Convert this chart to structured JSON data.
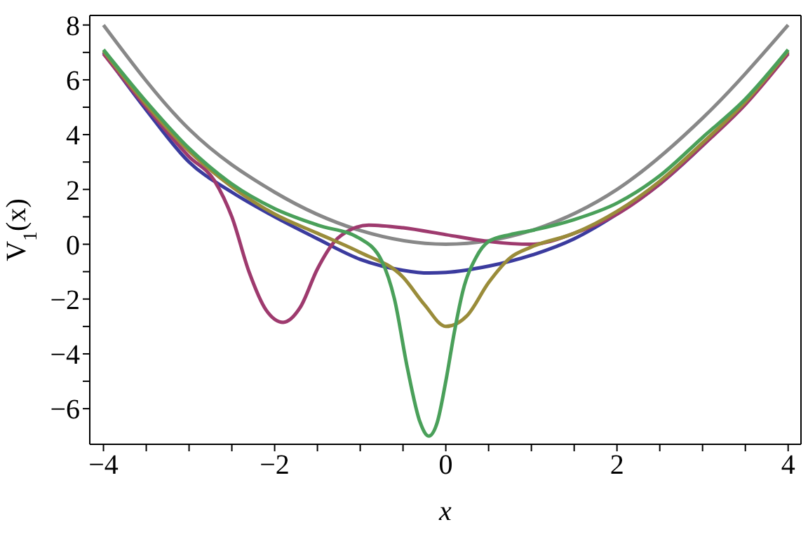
{
  "chart_data": {
    "type": "line",
    "xlabel": "x",
    "ylabel": "V$_{1}$(x)",
    "xlim": [
      -4.16,
      4.15
    ],
    "ylim": [
      -7.3,
      8.35
    ],
    "xticks": [
      -4,
      {
        "value": -3.5,
        "label": null
      },
      {
        "value": -3,
        "label": null
      },
      {
        "value": -2.5,
        "label": null
      },
      -2,
      {
        "value": -1.5,
        "label": null
      },
      {
        "value": -1,
        "label": null
      },
      {
        "value": -0.5,
        "label": null
      },
      0,
      {
        "value": 0.5,
        "label": null
      },
      {
        "value": 1,
        "label": null
      },
      {
        "value": 1.5,
        "label": null
      },
      2,
      {
        "value": 2.5,
        "label": null
      },
      {
        "value": 3,
        "label": null
      },
      {
        "value": 3.5,
        "label": null
      },
      4
    ],
    "yticks": [
      -6,
      {
        "value": -5,
        "label": null
      },
      -4,
      {
        "value": -3,
        "label": null
      },
      -2,
      {
        "value": -1,
        "label": null
      },
      0,
      {
        "value": 1,
        "label": null
      },
      2,
      {
        "value": 3,
        "label": null
      },
      4,
      {
        "value": 5,
        "label": null
      },
      6,
      {
        "value": 7,
        "label": null
      },
      8
    ],
    "grid": false,
    "legend": false,
    "marker": "none",
    "line_style": "solid",
    "series": [
      {
        "color": "#888888",
        "x": [
          -4,
          -3,
          -2,
          -1,
          0,
          1,
          2,
          3,
          4
        ],
        "values": [
          8,
          4.2,
          1.9,
          0.5,
          0,
          0.5,
          2,
          4.6,
          8
        ]
      },
      {
        "color": "#3b3b9e",
        "x": [
          -4,
          -3.5,
          -3,
          -2.5,
          -2,
          -1.5,
          -1,
          -0.5,
          -0.2,
          0,
          0.5,
          1,
          1.5,
          2,
          2.5,
          3,
          3.5,
          4
        ],
        "values": [
          7,
          4.9,
          3.0,
          1.9,
          1.0,
          0.2,
          -0.55,
          -0.95,
          -1.05,
          -1.03,
          -0.8,
          -0.4,
          0.2,
          1.1,
          2.2,
          3.6,
          5.2,
          7
        ]
      },
      {
        "color": "#9e3a6e",
        "x": [
          -4,
          -3.5,
          -3,
          -2.7,
          -2.5,
          -2.3,
          -2.1,
          -1.9,
          -1.7,
          -1.5,
          -1.3,
          -1.1,
          -0.9,
          -0.5,
          0,
          0.5,
          1,
          1.5,
          2,
          2.5,
          3,
          3.5,
          4
        ],
        "values": [
          6.95,
          5.0,
          3.2,
          2.3,
          1.0,
          -1.0,
          -2.4,
          -2.85,
          -2.3,
          -0.9,
          0.1,
          0.55,
          0.7,
          0.6,
          0.35,
          0.1,
          0,
          0.4,
          1.1,
          2.2,
          3.6,
          5.1,
          6.95
        ]
      },
      {
        "color": "#9a8c3a",
        "x": [
          -4,
          -3.5,
          -3,
          -2.5,
          -2,
          -1.5,
          -1,
          -0.5,
          -0.25,
          0,
          0.25,
          0.5,
          0.75,
          1,
          1.5,
          2,
          2.5,
          3,
          3.5,
          4
        ],
        "values": [
          7.05,
          5.1,
          3.4,
          2.1,
          1.1,
          0.4,
          -0.3,
          -1.2,
          -2.2,
          -3.0,
          -2.6,
          -1.4,
          -0.5,
          -0.1,
          0.4,
          1.2,
          2.3,
          3.7,
          5.2,
          7.05
        ]
      },
      {
        "color": "#4aa05a",
        "x": [
          -4,
          -3.5,
          -3,
          -2.5,
          -2,
          -1.5,
          -1,
          -0.75,
          -0.6,
          -0.45,
          -0.3,
          -0.2,
          -0.1,
          0,
          0.1,
          0.2,
          0.35,
          0.5,
          0.75,
          1,
          1.5,
          2,
          2.5,
          3,
          3.5,
          4
        ],
        "values": [
          7.1,
          5.2,
          3.5,
          2.2,
          1.3,
          0.7,
          0.2,
          -0.6,
          -2.0,
          -4.5,
          -6.5,
          -7.0,
          -6.5,
          -5.0,
          -3.2,
          -1.7,
          -0.5,
          0.1,
          0.35,
          0.5,
          0.9,
          1.5,
          2.5,
          3.9,
          5.3,
          7.1
        ]
      }
    ]
  }
}
